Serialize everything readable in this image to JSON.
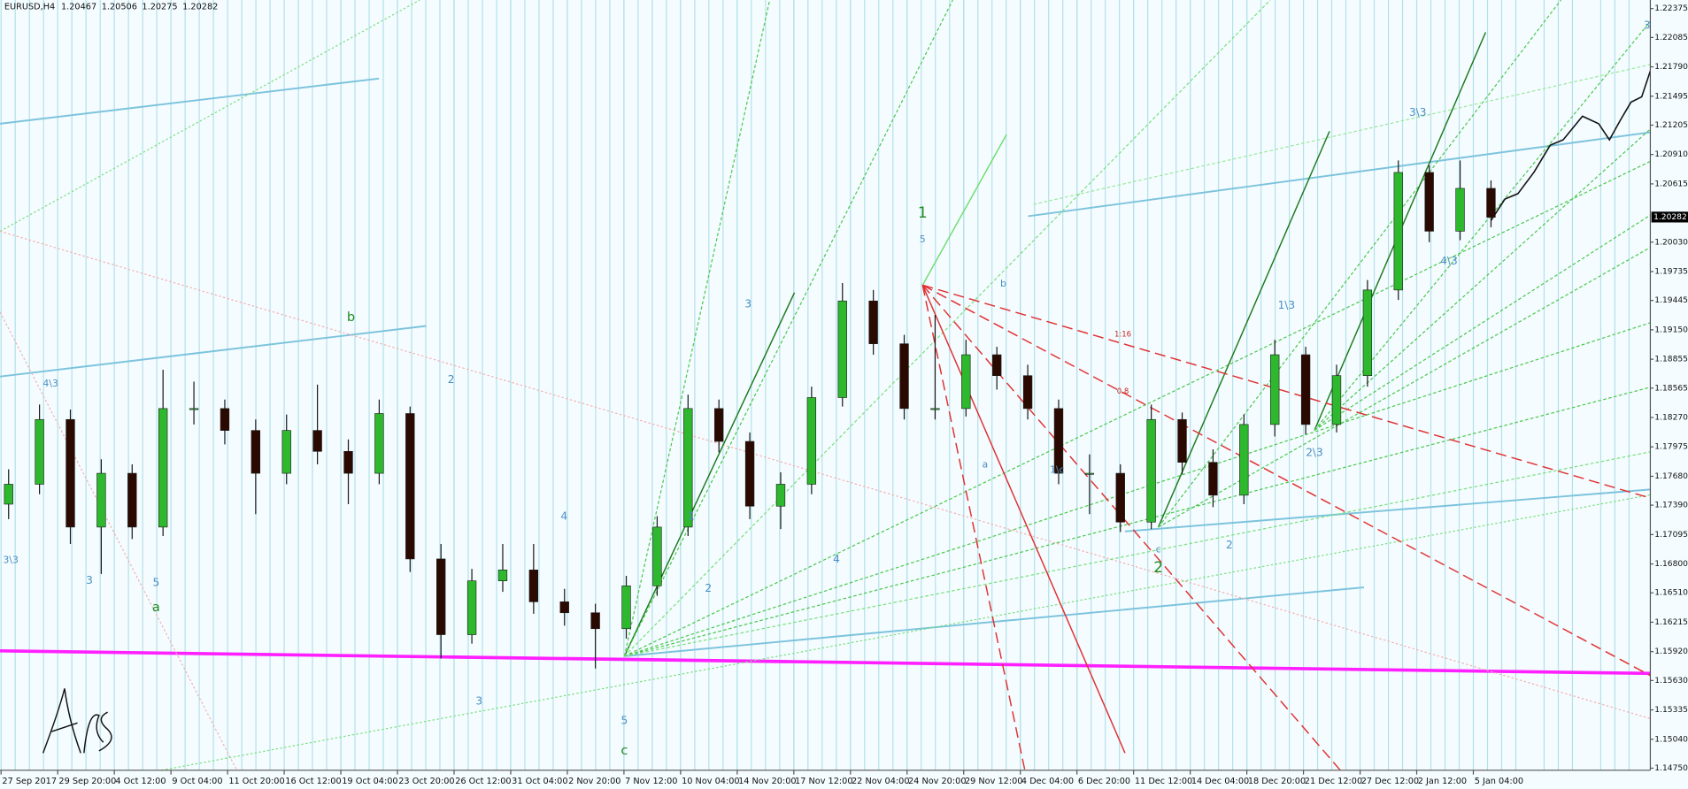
{
  "chart_data": {
    "type": "candlestick",
    "header": {
      "symbol": "EURUSD,H4",
      "open": 1.20467,
      "high": 1.20506,
      "low": 1.20275,
      "close": 1.20282
    },
    "current_price": 1.20282,
    "bull_color": "#2db82d",
    "bear_color": "#2a0a00",
    "open": [
      1.174,
      1.176,
      1.1825,
      1.1717,
      1.1771,
      1.1717,
      1.1836,
      1.1836,
      1.1814,
      1.1771,
      1.1814,
      1.1793,
      1.1771,
      1.1831,
      1.1685,
      1.1609,
      1.1663,
      1.1674,
      1.1642,
      1.1631,
      1.1615,
      1.1658,
      1.1717,
      1.1836,
      1.1803,
      1.1738,
      1.176,
      1.1847,
      1.1944,
      1.1901,
      1.1836,
      1.1836,
      1.189,
      1.1869,
      1.1836,
      1.1771,
      1.1771,
      1.1722,
      1.1825,
      1.1782,
      1.1749,
      1.182,
      1.189,
      1.182,
      1.1869,
      1.1955,
      1.2073,
      1.2014,
      1.2057
    ],
    "high": [
      1.1775,
      1.184,
      1.1835,
      1.1785,
      1.178,
      1.1875,
      1.1863,
      1.1845,
      1.1825,
      1.183,
      1.186,
      1.1805,
      1.1845,
      1.1838,
      1.17,
      1.1675,
      1.17,
      1.17,
      1.1655,
      1.164,
      1.1668,
      1.1728,
      1.185,
      1.1845,
      1.1812,
      1.1772,
      1.1858,
      1.1962,
      1.1955,
      1.191,
      1.193,
      1.1905,
      1.1898,
      1.188,
      1.1845,
      1.179,
      1.178,
      1.184,
      1.1832,
      1.1795,
      1.183,
      1.1905,
      1.1898,
      1.188,
      1.1965,
      1.2085,
      1.208,
      1.2085,
      1.2065
    ],
    "low": [
      1.1725,
      1.175,
      1.17,
      1.167,
      1.1705,
      1.1708,
      1.182,
      1.18,
      1.173,
      1.176,
      1.178,
      1.174,
      1.176,
      1.1672,
      1.1585,
      1.16,
      1.1652,
      1.163,
      1.1618,
      1.1575,
      1.1605,
      1.1648,
      1.1708,
      1.1792,
      1.1725,
      1.1715,
      1.175,
      1.1838,
      1.189,
      1.1825,
      1.1825,
      1.1828,
      1.1855,
      1.1825,
      1.176,
      1.173,
      1.1712,
      1.1715,
      1.177,
      1.1737,
      1.174,
      1.1808,
      1.181,
      1.1812,
      1.1858,
      1.1945,
      1.2003,
      1.2005,
      1.2018
    ],
    "close": [
      1.176,
      1.1825,
      1.1717,
      1.1771,
      1.1717,
      1.1836,
      1.1836,
      1.1814,
      1.1771,
      1.1814,
      1.1793,
      1.1771,
      1.1831,
      1.1685,
      1.1609,
      1.1663,
      1.1674,
      1.1642,
      1.1631,
      1.1615,
      1.1658,
      1.1717,
      1.1836,
      1.1803,
      1.1738,
      1.176,
      1.1847,
      1.1944,
      1.1901,
      1.1836,
      1.1836,
      1.189,
      1.1869,
      1.1836,
      1.1771,
      1.1771,
      1.1722,
      1.1825,
      1.1782,
      1.1749,
      1.182,
      1.189,
      1.182,
      1.1869,
      1.1955,
      1.2073,
      1.2014,
      1.2057,
      1.2028
    ],
    "x_labels": [
      "27 Sep 2017",
      "29 Sep 20:00",
      "4 Oct 12:00",
      "9 Oct 04:00",
      "11 Oct 20:00",
      "16 Oct 12:00",
      "19 Oct 04:00",
      "23 Oct 20:00",
      "26 Oct 12:00",
      "31 Oct 04:00",
      "2 Nov 20:00",
      "7 Nov 12:00",
      "10 Nov 04:00",
      "14 Nov 20:00",
      "17 Nov 12:00",
      "22 Nov 04:00",
      "24 Nov 20:00",
      "29 Nov 12:00",
      "4 Dec 04:00",
      "6 Dec 20:00",
      "11 Dec 12:00",
      "14 Dec 04:00",
      "18 Dec 20:00",
      "21 Dec 12:00",
      "27 Dec 12:00",
      "2 Jan 12:00",
      "5 Jan 04:00"
    ],
    "ylim": [
      1.14729,
      1.22461
    ],
    "yticks": [
      1.22375,
      1.22085,
      {
        "value": 1.2179,
        "label": "1.21790"
      },
      1.21495,
      1.21205,
      {
        "value": 1.2091,
        "label": "1.20910"
      },
      1.20615,
      {
        "value": 1.2003,
        "label": "1.20030"
      },
      1.19735,
      1.19445,
      {
        "value": 1.1915,
        "label": "1.19150"
      },
      1.18855,
      1.18565,
      {
        "value": 1.1827,
        "label": "1.18270"
      },
      1.17975,
      {
        "value": 1.1768,
        "label": "1.17680"
      },
      {
        "value": 1.1739,
        "label": "1.17390"
      },
      1.17095,
      {
        "value": 1.168,
        "label": "1.16800"
      },
      {
        "value": 1.1651,
        "label": "1.16510"
      },
      1.16215,
      {
        "value": 1.1592,
        "label": "1.15920"
      },
      {
        "value": 1.1563,
        "label": "1.15630"
      },
      1.15335,
      {
        "value": 1.1504,
        "label": "1.15040"
      },
      {
        "value": 1.1475,
        "label": "1.14750"
      }
    ],
    "annotations": [
      {
        "text": "1",
        "color": "#1f8a1f"
      },
      {
        "text": "5",
        "color": "#4a8fc4"
      },
      {
        "text": "2",
        "color": "#1f8a1f"
      },
      {
        "text": "c",
        "color": "#1f8a1f"
      },
      {
        "text": "5",
        "color": "#4a8fc4"
      },
      {
        "text": "a",
        "color": "#1f8a1f"
      },
      {
        "text": "5",
        "color": "#4a8fc4"
      },
      {
        "text": "3",
        "color": "#4a8fc4"
      },
      {
        "text": "b",
        "color": "#1f8a1f"
      },
      {
        "text": "3",
        "color": "#4a8fc4"
      },
      {
        "text": "1",
        "color": "#4a8fc4"
      },
      {
        "text": "2",
        "color": "#4a8fc4"
      },
      {
        "text": "4",
        "color": "#4a8fc4"
      },
      {
        "text": "4",
        "color": "#4a8fc4"
      },
      {
        "text": "3",
        "color": "#4a8fc4"
      },
      {
        "text": "2",
        "color": "#4a8fc4"
      },
      {
        "text": "3\\3",
        "color": "#4a8fc4"
      },
      {
        "text": "1\\3",
        "color": "#4a8fc4"
      },
      {
        "text": "2\\3",
        "color": "#4a8fc4"
      },
      {
        "text": "4\\3",
        "color": "#4a8fc4"
      },
      {
        "text": "4\\3",
        "color": "#4a8fc4"
      },
      {
        "text": "3\\3",
        "color": "#4a8fc4"
      },
      {
        "text": "1:16",
        "color": "#c8281e"
      },
      {
        "text": "0.8",
        "color": "#c8281e"
      },
      {
        "text": "3",
        "color": "#4a8fc4"
      },
      {
        "text": "2",
        "color": "#4a8fc4"
      },
      {
        "text": "1\\c",
        "color": "#4a8fc4"
      },
      {
        "text": "a",
        "color": "#4a8fc4"
      },
      {
        "text": "c",
        "color": "#4a8fc4"
      },
      {
        "text": "b",
        "color": "#4a8fc4"
      }
    ],
    "signature": "ARS"
  }
}
